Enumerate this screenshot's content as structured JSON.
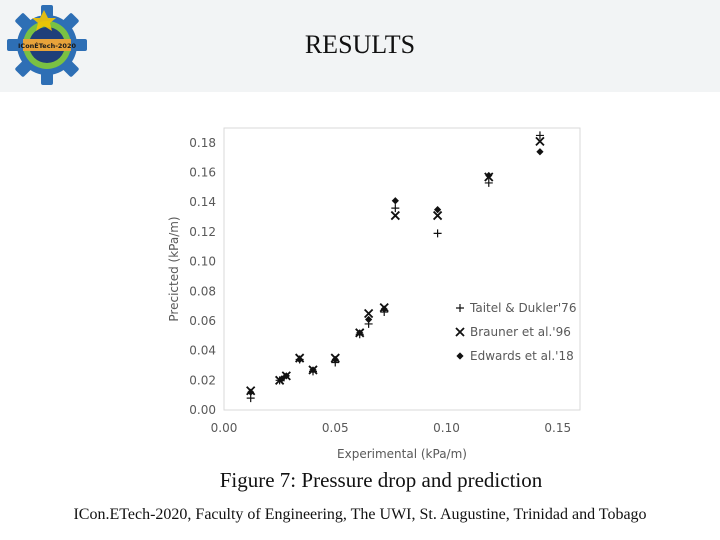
{
  "header": {
    "title": "RESULTS",
    "logo_text": "IConÉTech-2020"
  },
  "chart_data": {
    "type": "scatter",
    "xlabel": "Experimental (kPa/m)",
    "ylabel": "Precicted (kPa/m)",
    "xlim": [
      0,
      0.16
    ],
    "ylim": [
      0,
      0.19
    ],
    "xticks": [
      "0.00",
      "0.05",
      "0.10",
      "0.15"
    ],
    "yticks": [
      "0.00",
      "0.02",
      "0.04",
      "0.06",
      "0.08",
      "0.10",
      "0.12",
      "0.14",
      "0.16",
      "0.18"
    ],
    "grid": false,
    "legend_position": "bottom-right",
    "series": [
      {
        "name": "Taitel & Dukler'76",
        "marker": "plus",
        "color": "#111111",
        "x": [
          0.012,
          0.025,
          0.027,
          0.034,
          0.04,
          0.05,
          0.061,
          0.065,
          0.072,
          0.077,
          0.096,
          0.119,
          0.142
        ],
        "y": [
          0.008,
          0.02,
          0.022,
          0.034,
          0.026,
          0.032,
          0.051,
          0.058,
          0.066,
          0.136,
          0.119,
          0.153,
          0.185
        ]
      },
      {
        "name": "Brauner et al.'96",
        "marker": "x",
        "color": "#111111",
        "x": [
          0.012,
          0.025,
          0.028,
          0.034,
          0.04,
          0.05,
          0.061,
          0.065,
          0.072,
          0.077,
          0.096,
          0.119,
          0.142
        ],
        "y": [
          0.013,
          0.02,
          0.023,
          0.035,
          0.027,
          0.035,
          0.052,
          0.065,
          0.069,
          0.131,
          0.131,
          0.157,
          0.181
        ]
      },
      {
        "name": "Edwards et al.'18",
        "marker": "diamond",
        "color": "#111111",
        "x": [
          0.012,
          0.026,
          0.028,
          0.034,
          0.04,
          0.05,
          0.061,
          0.065,
          0.072,
          0.077,
          0.096,
          0.119,
          0.142
        ],
        "y": [
          0.012,
          0.021,
          0.023,
          0.034,
          0.027,
          0.034,
          0.052,
          0.061,
          0.068,
          0.141,
          0.135,
          0.158,
          0.174
        ]
      }
    ]
  },
  "caption": "Figure 7: Pressure drop and prediction",
  "footer": "ICon.ETech-2020, Faculty of Engineering, The UWI, St. Augustine, Trinidad and Tobago"
}
